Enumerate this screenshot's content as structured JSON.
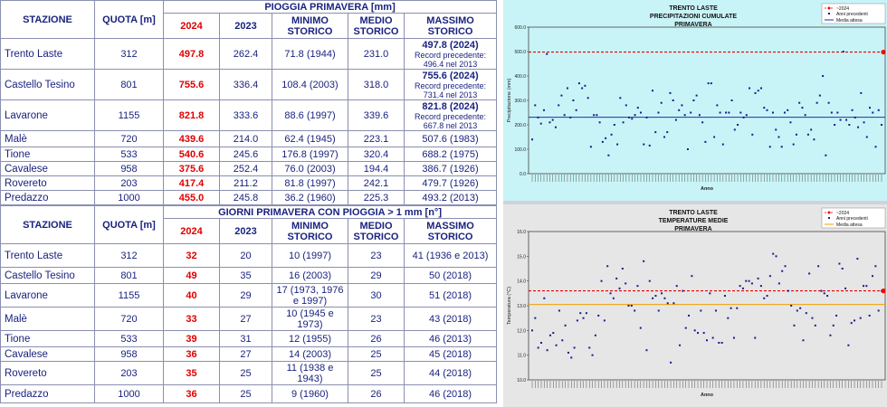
{
  "rain_table": {
    "group_title": "PIOGGIA PRIMAVERA [mm]",
    "headers": [
      "STAZIONE",
      "QUOTA [m]",
      "2024",
      "2023",
      "MINIMO STORICO",
      "MEDIO STORICO",
      "MASSIMO STORICO"
    ],
    "rows": [
      {
        "station": "Trento Laste",
        "quota": "312",
        "y2024": "497.8",
        "y2023": "262.4",
        "min": "71.8 (1944)",
        "avg": "231.0",
        "max": "497.8 (2024)",
        "record": "Record precedente: 496.4 nel 2013"
      },
      {
        "station": "Castello Tesino",
        "quota": "801",
        "y2024": "755.6",
        "y2023": "336.4",
        "min": "108.4 (2003)",
        "avg": "318.0",
        "max": "755.6 (2024)",
        "record": "Record precedente: 731.4 nel 2013"
      },
      {
        "station": "Lavarone",
        "quota": "1155",
        "y2024": "821.8",
        "y2023": "333.6",
        "min": "88.6 (1997)",
        "avg": "339.6",
        "max": "821.8 (2024)",
        "record": "Record precedente: 667.8 nel 2013"
      },
      {
        "station": "Malè",
        "quota": "720",
        "y2024": "439.6",
        "y2023": "214.0",
        "min": "62.4 (1945)",
        "avg": "223.1",
        "max": "507.6 (1983)",
        "record": ""
      },
      {
        "station": "Tione",
        "quota": "533",
        "y2024": "540.6",
        "y2023": "245.6",
        "min": "176.8 (1997)",
        "avg": "320.4",
        "max": "688.2 (1975)",
        "record": ""
      },
      {
        "station": "Cavalese",
        "quota": "958",
        "y2024": "375.6",
        "y2023": "252.4",
        "min": "76.0 (2003)",
        "avg": "194.4",
        "max": "386.7 (1926)",
        "record": ""
      },
      {
        "station": "Rovereto",
        "quota": "203",
        "y2024": "417.4",
        "y2023": "211.2",
        "min": "81.8 (1997)",
        "avg": "242.1",
        "max": "479.7 (1926)",
        "record": ""
      },
      {
        "station": "Predazzo",
        "quota": "1000",
        "y2024": "455.0",
        "y2023": "245.8",
        "min": "36.2 (1960)",
        "avg": "225.3",
        "max": "493.2 (2013)",
        "record": ""
      }
    ]
  },
  "days_table": {
    "group_title": "GIORNI PRIMAVERA CON PIOGGIA > 1 mm [n°]",
    "headers": [
      "STAZIONE",
      "QUOTA [m]",
      "2024",
      "2023",
      "MINIMO STORICO",
      "MEDIO STORICO",
      "MASSIMO STORICO"
    ],
    "rows": [
      {
        "station": "Trento Laste",
        "quota": "312",
        "y2024": "32",
        "y2023": "20",
        "min": "10 (1997)",
        "avg": "23",
        "max": "41 (1936 e 2013)"
      },
      {
        "station": "Castello Tesino",
        "quota": "801",
        "y2024": "49",
        "y2023": "35",
        "min": "16 (2003)",
        "avg": "29",
        "max": "50 (2018)"
      },
      {
        "station": "Lavarone",
        "quota": "1155",
        "y2024": "40",
        "y2023": "29",
        "min": "17 (1973, 1976 e 1997)",
        "avg": "30",
        "max": "51 (2018)"
      },
      {
        "station": "Malè",
        "quota": "720",
        "y2024": "33",
        "y2023": "27",
        "min": "10 (1945 e 1973)",
        "avg": "23",
        "max": "43 (2018)"
      },
      {
        "station": "Tione",
        "quota": "533",
        "y2024": "39",
        "y2023": "31",
        "min": "12 (1955)",
        "avg": "26",
        "max": "46 (2013)"
      },
      {
        "station": "Cavalese",
        "quota": "958",
        "y2024": "36",
        "y2023": "27",
        "min": "14 (2003)",
        "avg": "25",
        "max": "45 (2018)"
      },
      {
        "station": "Rovereto",
        "quota": "203",
        "y2024": "35",
        "y2023": "25",
        "min": "11 (1938 e 1943)",
        "avg": "25",
        "max": "44 (2018)"
      },
      {
        "station": "Predazzo",
        "quota": "1000",
        "y2024": "36",
        "y2023": "25",
        "min": "9 (1960)",
        "avg": "26",
        "max": "46 (2018)"
      }
    ]
  },
  "chart_data": [
    {
      "type": "scatter",
      "title": "TRENTO LASTE\nPRECIPITAZIONI CUMULATE\nPRIMAVERA",
      "xlabel": "Anno",
      "ylabel": "Precipitazione (mm)",
      "ylim": [
        0,
        600
      ],
      "yticks": [
        "0.0",
        "100.0",
        "200.0",
        "300.0",
        "400.0",
        "500.0",
        "600.0"
      ],
      "background": "#c9f4f7",
      "legend": [
        "~2024",
        "Anni precedenti",
        "Media attesa"
      ],
      "legend_position": "top-right",
      "series": [
        {
          "name": "Anni precedenti",
          "color": "#1a1a8c",
          "values": [
            140,
            280,
            230,
            205,
            260,
            490,
            210,
            220,
            190,
            280,
            320,
            240,
            350,
            230,
            300,
            260,
            370,
            350,
            360,
            310,
            110,
            240,
            240,
            210,
            130,
            145,
            75,
            160,
            200,
            120,
            310,
            210,
            280,
            230,
            225,
            240,
            270,
            250,
            120,
            230,
            115,
            340,
            170,
            250,
            290,
            150,
            170,
            330,
            300,
            220,
            260,
            280,
            240,
            100,
            250,
            300,
            320,
            240,
            210,
            130,
            370,
            370,
            150,
            280,
            250,
            120,
            250,
            250,
            300,
            180,
            200,
            250,
            230,
            240,
            350,
            160,
            330,
            340,
            350,
            270,
            260,
            110,
            250,
            180,
            150,
            110,
            250,
            260,
            210,
            120,
            160,
            290,
            270,
            240,
            160,
            180,
            140,
            290,
            320,
            400,
            75,
            290,
            250,
            200,
            250,
            220,
            500,
            220,
            200,
            260,
            230,
            190,
            330,
            210,
            150,
            270,
            250,
            110,
            260,
            200
          ]
        },
        {
          "name": "~2024",
          "color": "#ff0000",
          "values": [
            497.8
          ]
        }
      ],
      "reference_lines": [
        {
          "name": "Record",
          "value": 497.8,
          "color": "#e00000",
          "style": "dashed"
        },
        {
          "name": "Media attesa",
          "value": 231.0,
          "color": "#1f2fa8",
          "style": "solid"
        }
      ]
    },
    {
      "type": "scatter",
      "title": "TRENTO LASTE\nTEMPERATURE MEDIE\nPRIMAVERA",
      "xlabel": "Anno",
      "ylabel": "Temperatura (°C)",
      "ylim": [
        10,
        16
      ],
      "yticks": [
        "10.0",
        "11.0",
        "12.0",
        "13.0",
        "14.0",
        "15.0",
        "16.0"
      ],
      "background": "#e6e6e6",
      "legend": [
        "~2024",
        "Anni precedenti",
        "Media attesa"
      ],
      "legend_position": "top-right",
      "series": [
        {
          "name": "Anni precedenti",
          "color": "#1a1a8c",
          "values": [
            12.0,
            12.5,
            11.3,
            11.5,
            13.3,
            11.2,
            11.8,
            11.9,
            11.4,
            12.8,
            11.6,
            12.2,
            11.1,
            10.9,
            11.3,
            12.4,
            12.7,
            12.5,
            12.7,
            11.3,
            11.0,
            11.8,
            12.6,
            14.0,
            12.4,
            14.6,
            13.5,
            13.3,
            14.1,
            13.7,
            14.5,
            13.9,
            13.0,
            13.0,
            12.8,
            13.8,
            12.1,
            14.8,
            11.2,
            14.0,
            13.3,
            13.4,
            12.8,
            13.5,
            13.3,
            13.1,
            10.7,
            13.1,
            13.8,
            11.4,
            13.6,
            12.1,
            12.6,
            14.2,
            12.0,
            11.9,
            12.8,
            11.9,
            11.6,
            13.5,
            11.7,
            12.8,
            11.5,
            11.5,
            13.4,
            12.5,
            12.9,
            11.7,
            12.9,
            13.8,
            13.7,
            14.0,
            14.0,
            13.9,
            11.7,
            14.1,
            13.8,
            13.3,
            13.4,
            14.2,
            15.1,
            15.0,
            13.9,
            14.4,
            14.6,
            13.6,
            13.0,
            12.2,
            12.8,
            12.9,
            11.6,
            12.7,
            14.3,
            12.5,
            12.2,
            14.6,
            13.6,
            13.5,
            13.4,
            11.8,
            12.2,
            12.6,
            14.7,
            14.5,
            13.7,
            11.4,
            12.3,
            12.4,
            14.9,
            12.5,
            13.8,
            13.8,
            12.6,
            14.2,
            14.6,
            12.8,
            13.6
          ]
        },
        {
          "name": "~2024",
          "color": "#ff0000",
          "values": [
            13.6
          ]
        }
      ],
      "reference_lines": [
        {
          "name": "Record",
          "value": 13.6,
          "color": "#e00000",
          "style": "dashed"
        },
        {
          "name": "Media attesa",
          "value": 13.05,
          "color": "#f0a000",
          "style": "solid"
        }
      ]
    }
  ]
}
